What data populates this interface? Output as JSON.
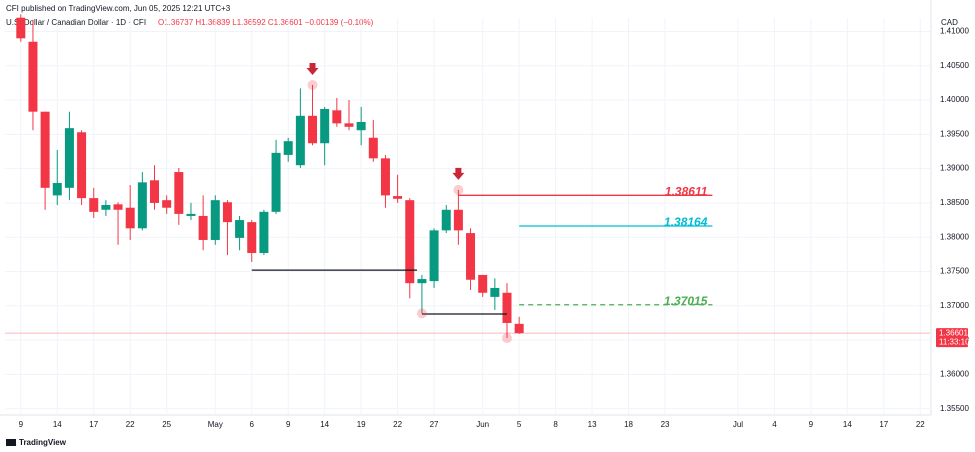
{
  "header": {
    "published": "CFI published on TradingView.com, Jun 05, 2025 12:21 UTC+3",
    "symbol": "U.S. Dollar / Canadian Dollar · 1D · CFI",
    "quote": "O1.36737 H1.36839 L1.36592 C1.36601 −0.00139 (−0.10%)",
    "currency": "CAD"
  },
  "footer": {
    "brand": "TradingView"
  },
  "chart_data": {
    "type": "candlestick",
    "up_color": "#089981",
    "down_color": "#f23645",
    "open": [
      1.412,
      1.4085,
      1.3983,
      1.3861,
      1.3872,
      1.3953,
      1.3857,
      1.384,
      1.3848,
      1.3843,
      1.3813,
      1.3883,
      1.3854,
      1.3895,
      1.3831,
      1.3831,
      1.3796,
      1.3851,
      1.3799,
      1.3822,
      1.3777,
      1.3837,
      1.392,
      1.3905,
      1.3977,
      1.3937,
      1.3985,
      1.3966,
      1.3956,
      1.3945,
      1.3915,
      1.386,
      1.3854,
      1.3733,
      1.3736,
      1.381,
      1.384,
      1.3806,
      1.3745,
      1.3713,
      1.3719,
      1.36737
    ],
    "high": [
      1.4125,
      1.4117,
      1.3983,
      1.3927,
      1.3983,
      1.3956,
      1.3872,
      1.3854,
      1.3851,
      1.3876,
      1.3895,
      1.3905,
      1.3861,
      1.3901,
      1.385,
      1.3861,
      1.3861,
      1.3854,
      1.3831,
      1.3825,
      1.384,
      1.3942,
      1.3945,
      1.4017,
      1.4022,
      1.399,
      1.4003,
      1.4,
      1.399,
      1.3971,
      1.392,
      1.3891,
      1.3857,
      1.3745,
      1.3813,
      1.3847,
      1.3869,
      1.3813,
      1.3745,
      1.374,
      1.3733,
      1.36839
    ],
    "low": [
      1.4085,
      1.3956,
      1.384,
      1.3847,
      1.3854,
      1.3847,
      1.3828,
      1.3831,
      1.3789,
      1.3796,
      1.381,
      1.384,
      1.3834,
      1.3818,
      1.3825,
      1.3781,
      1.3789,
      1.3774,
      1.3781,
      1.3764,
      1.3774,
      1.3834,
      1.391,
      1.3901,
      1.3934,
      1.3905,
      1.3961,
      1.3956,
      1.3934,
      1.391,
      1.3843,
      1.385,
      1.3711,
      1.3689,
      1.3726,
      1.3806,
      1.3789,
      1.3723,
      1.3713,
      1.3694,
      1.3653,
      1.36592
    ],
    "close": [
      1.409,
      1.3983,
      1.3872,
      1.3879,
      1.3959,
      1.3857,
      1.3837,
      1.3847,
      1.384,
      1.3813,
      1.388,
      1.385,
      1.3843,
      1.3834,
      1.3834,
      1.3796,
      1.3854,
      1.3822,
      1.3825,
      1.3777,
      1.3837,
      1.3923,
      1.394,
      1.3977,
      1.3937,
      1.3987,
      1.3966,
      1.3961,
      1.3968,
      1.3915,
      1.3861,
      1.3856,
      1.3733,
      1.3739,
      1.381,
      1.384,
      1.381,
      1.3738,
      1.3719,
      1.3726,
      1.3675,
      1.36601
    ],
    "countdown": "11:33:10",
    "xlim": [
      -1.3,
      74.8
    ],
    "xticks": [
      {
        "value": 0,
        "label": "9"
      },
      {
        "value": 3,
        "label": "14"
      },
      {
        "value": 6,
        "label": "17"
      },
      {
        "value": 9,
        "label": "22"
      },
      {
        "value": 12,
        "label": "25"
      },
      {
        "value": 16,
        "label": "May"
      },
      {
        "value": 19,
        "label": "6"
      },
      {
        "value": 22,
        "label": "9"
      },
      {
        "value": 25,
        "label": "14"
      },
      {
        "value": 28,
        "label": "19"
      },
      {
        "value": 31,
        "label": "22"
      },
      {
        "value": 34,
        "label": "27"
      },
      {
        "value": 38,
        "label": "Jun"
      },
      {
        "value": 41,
        "label": "5"
      },
      {
        "value": 44,
        "label": "8"
      },
      {
        "value": 47,
        "label": "13"
      },
      {
        "value": 50,
        "label": "18"
      },
      {
        "value": 53,
        "label": "23"
      },
      {
        "value": 59,
        "label": "Jul"
      },
      {
        "value": 62,
        "label": "4"
      },
      {
        "value": 65,
        "label": "9"
      },
      {
        "value": 68,
        "label": "14"
      },
      {
        "value": 71,
        "label": "17"
      },
      {
        "value": 74,
        "label": "22"
      }
    ],
    "ylim": [
      1.35408,
      1.41196
    ],
    "yticks": [
      {
        "value": 1.355,
        "label": "1.35500"
      },
      {
        "value": 1.36,
        "label": "1.36000"
      },
      {
        "value": 1.365,
        "label": "1.36500"
      },
      {
        "value": 1.37,
        "label": "1.37000"
      },
      {
        "value": 1.375,
        "label": "1.37500"
      },
      {
        "value": 1.38,
        "label": "1.38000"
      },
      {
        "value": 1.385,
        "label": "1.38500"
      },
      {
        "value": 1.39,
        "label": "1.39000"
      },
      {
        "value": 1.395,
        "label": "1.39500"
      },
      {
        "value": 1.4,
        "label": "1.40000"
      },
      {
        "value": 1.405,
        "label": "1.40500"
      },
      {
        "value": 1.41,
        "label": "1.41000"
      }
    ],
    "grid": true,
    "levels": [
      {
        "value": 1.38611,
        "from": 36,
        "to": 56.9,
        "color": "#f23645",
        "dashed": false
      },
      {
        "value": 1.38164,
        "from": 41,
        "to": 56.9,
        "color": "#00bcd4",
        "dashed": false
      },
      {
        "value": 1.37015,
        "from": 41,
        "to": 56.9,
        "color": "#4caf50",
        "dashed": true
      }
    ],
    "segments": [
      {
        "value": 1.3752,
        "from": 19,
        "to": 32.6
      },
      {
        "value": 1.3688,
        "from": 33,
        "to": 40
      }
    ],
    "highlight_highs": [
      24,
      36
    ],
    "highlight_lows": [
      33,
      40
    ],
    "arrows": [
      24,
      36
    ]
  }
}
